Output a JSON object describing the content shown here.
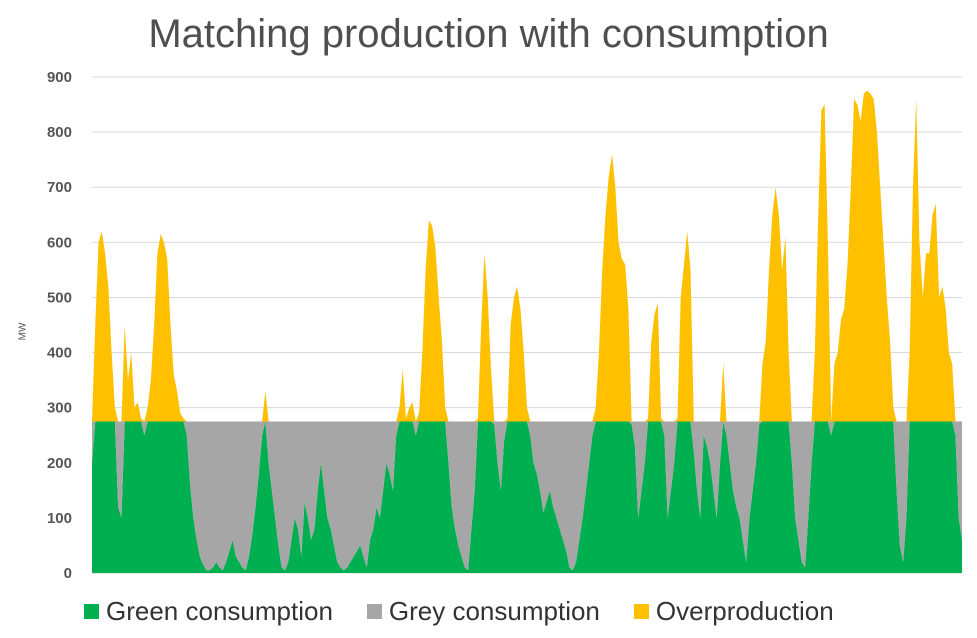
{
  "chart_data": {
    "type": "area",
    "title": "Matching production with consumption",
    "ylabel": "MW",
    "xlabel": "",
    "ylim": [
      0,
      900
    ],
    "yticks": [
      0,
      100,
      200,
      300,
      400,
      500,
      600,
      700,
      800,
      900
    ],
    "consumption_level": 275,
    "grid": "horizontal",
    "legend_position": "bottom",
    "colors": {
      "green": "#00b050",
      "grey": "#a6a6a6",
      "over": "#ffc000"
    },
    "series": [
      {
        "name": "Green consumption"
      },
      {
        "name": "Grey consumption"
      },
      {
        "name": "Overproduction"
      }
    ],
    "production": [
      200,
      450,
      600,
      620,
      580,
      520,
      400,
      300,
      120,
      100,
      450,
      350,
      400,
      300,
      310,
      280,
      250,
      300,
      350,
      450,
      580,
      615,
      600,
      570,
      450,
      360,
      330,
      290,
      280,
      250,
      160,
      100,
      60,
      30,
      15,
      5,
      5,
      10,
      20,
      10,
      5,
      20,
      40,
      60,
      30,
      20,
      10,
      5,
      30,
      70,
      120,
      180,
      250,
      330,
      200,
      150,
      100,
      50,
      10,
      5,
      20,
      60,
      100,
      80,
      30,
      130,
      100,
      60,
      80,
      150,
      200,
      150,
      100,
      80,
      50,
      20,
      10,
      5,
      10,
      20,
      30,
      40,
      50,
      30,
      10,
      60,
      80,
      120,
      100,
      150,
      200,
      180,
      150,
      250,
      300,
      370,
      280,
      300,
      310,
      250,
      290,
      400,
      550,
      640,
      630,
      590,
      500,
      420,
      300,
      200,
      120,
      80,
      50,
      30,
      10,
      5,
      80,
      150,
      280,
      450,
      580,
      500,
      370,
      270,
      200,
      150,
      240,
      280,
      450,
      500,
      520,
      480,
      400,
      300,
      250,
      200,
      180,
      150,
      110,
      130,
      150,
      120,
      100,
      80,
      60,
      40,
      10,
      5,
      20,
      60,
      100,
      150,
      200,
      250,
      300,
      400,
      550,
      650,
      720,
      760,
      700,
      600,
      570,
      560,
      480,
      270,
      230,
      100,
      150,
      200,
      280,
      420,
      470,
      490,
      280,
      250,
      100,
      150,
      200,
      280,
      500,
      560,
      620,
      550,
      220,
      150,
      100,
      250,
      230,
      200,
      150,
      100,
      200,
      380,
      250,
      200,
      150,
      120,
      100,
      60,
      20,
      100,
      150,
      200,
      270,
      380,
      420,
      550,
      650,
      700,
      650,
      550,
      610,
      400,
      200,
      100,
      60,
      20,
      10,
      100,
      200,
      400,
      640,
      840,
      850,
      600,
      250,
      380,
      400,
      460,
      480,
      560,
      700,
      860,
      850,
      820,
      870,
      875,
      870,
      860,
      800,
      700,
      600,
      500,
      420,
      300,
      150,
      50,
      20,
      100,
      400,
      700,
      860,
      600,
      500,
      580,
      580,
      650,
      670,
      500,
      520,
      480,
      400,
      380,
      250,
      100,
      60
    ]
  }
}
